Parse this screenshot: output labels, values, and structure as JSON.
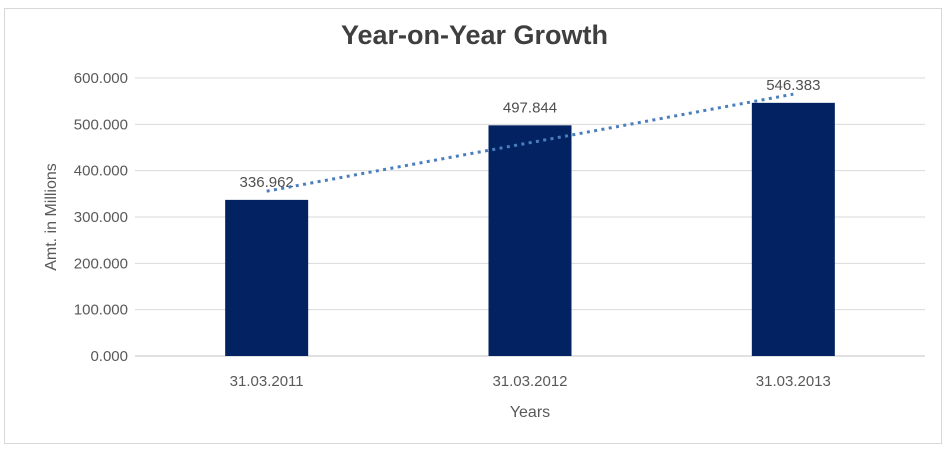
{
  "chart_data": {
    "type": "bar",
    "title": "Year-on-Year Growth",
    "xlabel": "Years",
    "ylabel": "Amt. in Millions",
    "categories": [
      "31.03.2011",
      "31.03.2012",
      "31.03.2013"
    ],
    "values": [
      336.962,
      497.844,
      546.383
    ],
    "data_labels": [
      "336.962",
      "497.844",
      "546.383"
    ],
    "ylim": [
      0,
      600
    ],
    "y_tick_step": 100,
    "y_tick_labels": [
      "0.000",
      "100.000",
      "200.000",
      "300.000",
      "400.000",
      "500.000",
      "600.000"
    ],
    "grid": true,
    "legend": "none",
    "trendline": {
      "type": "linear",
      "style": "dotted"
    },
    "colors": {
      "bar": "#022262",
      "trendline": "#4a7ebd",
      "gridline": "#d9d9d9",
      "axis_line": "#c3c3c3",
      "title_text": "#3f3f3f",
      "axis_text": "#595959",
      "data_label_text": "#4f4f4f",
      "frame_border": "#d8d6d6",
      "background": "#ffffff"
    }
  }
}
